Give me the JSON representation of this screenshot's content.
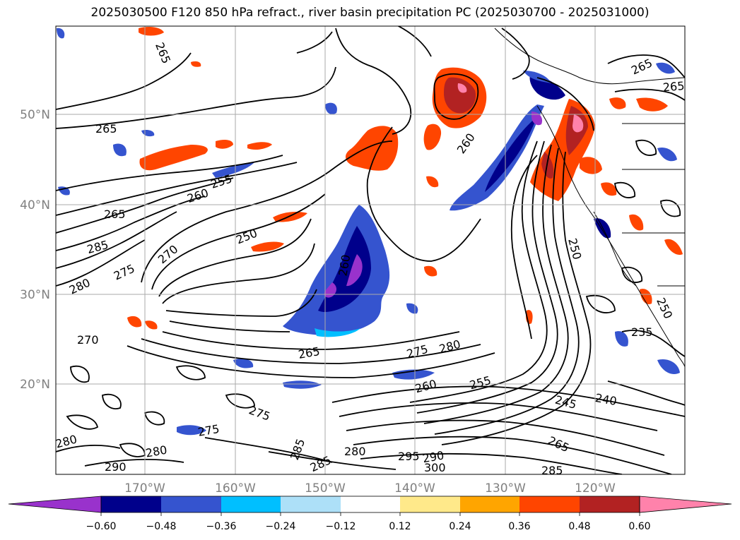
{
  "title": "2025030500 F120 850 hPa refract., river basin precipitation PC (2025030700 - 2025031000)",
  "map": {
    "lat_labels": [
      "50°N",
      "40°N",
      "30°N",
      "20°N"
    ],
    "lon_labels": [
      "170°W",
      "160°W",
      "150°W",
      "140°W",
      "130°W",
      "120°W"
    ],
    "contour_labels": [
      "265",
      "265",
      "265",
      "260",
      "255",
      "250",
      "265",
      "285",
      "270",
      "275",
      "280",
      "260",
      "250",
      "265",
      "275",
      "280",
      "260",
      "255",
      "245",
      "240",
      "235",
      "265",
      "275",
      "280",
      "285",
      "280",
      "290",
      "295",
      "300",
      "290",
      "285",
      "285",
      "270",
      "275",
      "280",
      "250",
      "260",
      "265"
    ],
    "axis_label_color": "#808080"
  },
  "colorbar": {
    "ticks": [
      "−0.60",
      "−0.48",
      "−0.36",
      "−0.24",
      "−0.12",
      "0.12",
      "0.24",
      "0.36",
      "0.48",
      "0.60"
    ],
    "colors": [
      "#9932CC",
      "#00008B",
      "#3554CF",
      "#00BFFF",
      "#ADE0F8",
      "#FFFFFF",
      "#FFE98A",
      "#FFA500",
      "#FF4500",
      "#B22222",
      "#FF82AB",
      "#FF82AB"
    ]
  }
}
